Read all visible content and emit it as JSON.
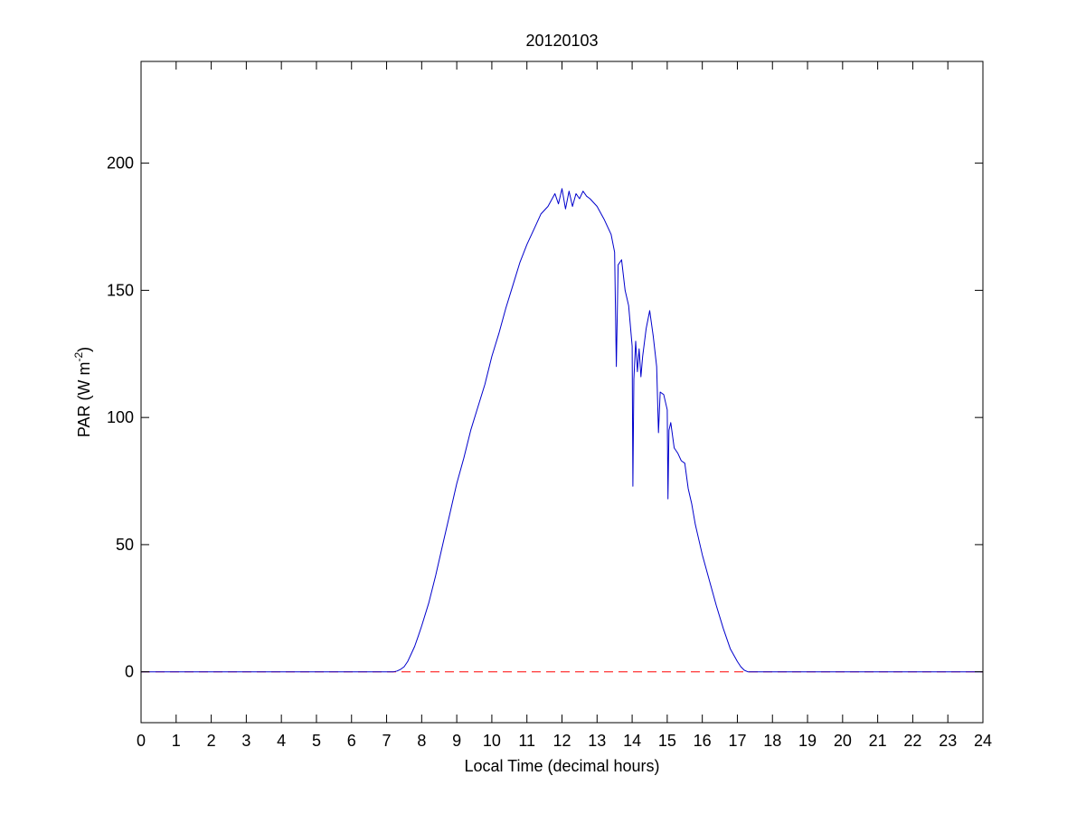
{
  "chart_data": {
    "type": "line",
    "title": "20120103",
    "xlabel": "Local Time (decimal hours)",
    "ylabel": {
      "main": "PAR (W m",
      "superscript": "-2",
      "closing": ")"
    },
    "xlim": [
      0,
      24
    ],
    "ylim": [
      -20,
      240
    ],
    "xticks": [
      0,
      1,
      2,
      3,
      4,
      5,
      6,
      7,
      8,
      9,
      10,
      11,
      12,
      13,
      14,
      15,
      16,
      17,
      18,
      19,
      20,
      21,
      22,
      23,
      24
    ],
    "yticks": [
      0,
      50,
      100,
      150,
      200
    ],
    "grid": false,
    "legend": null,
    "reference_line": {
      "y": 0,
      "style": "dashed",
      "color": "#ff0000"
    },
    "series": [
      {
        "color": "#0000cc",
        "points": [
          [
            0,
            0
          ],
          [
            7.2,
            0
          ],
          [
            7.3,
            0.3
          ],
          [
            7.4,
            1
          ],
          [
            7.5,
            2
          ],
          [
            7.6,
            4
          ],
          [
            7.7,
            7
          ],
          [
            7.8,
            10
          ],
          [
            7.9,
            14
          ],
          [
            8.0,
            18
          ],
          [
            8.2,
            27
          ],
          [
            8.4,
            38
          ],
          [
            8.6,
            50
          ],
          [
            8.8,
            62
          ],
          [
            9.0,
            74
          ],
          [
            9.2,
            84
          ],
          [
            9.4,
            95
          ],
          [
            9.6,
            104
          ],
          [
            9.8,
            113
          ],
          [
            10.0,
            124
          ],
          [
            10.2,
            133
          ],
          [
            10.4,
            143
          ],
          [
            10.6,
            152
          ],
          [
            10.8,
            161
          ],
          [
            11.0,
            168
          ],
          [
            11.2,
            174
          ],
          [
            11.4,
            180
          ],
          [
            11.6,
            183
          ],
          [
            11.8,
            188
          ],
          [
            11.9,
            184
          ],
          [
            12.0,
            190
          ],
          [
            12.1,
            182
          ],
          [
            12.2,
            189
          ],
          [
            12.3,
            183
          ],
          [
            12.4,
            188
          ],
          [
            12.5,
            186
          ],
          [
            12.6,
            189
          ],
          [
            12.7,
            187
          ],
          [
            12.8,
            186
          ],
          [
            13.0,
            183
          ],
          [
            13.2,
            178
          ],
          [
            13.4,
            172
          ],
          [
            13.5,
            165
          ],
          [
            13.55,
            120
          ],
          [
            13.6,
            160
          ],
          [
            13.7,
            162
          ],
          [
            13.8,
            150
          ],
          [
            13.9,
            144
          ],
          [
            14.0,
            128
          ],
          [
            14.02,
            73
          ],
          [
            14.05,
            115
          ],
          [
            14.1,
            130
          ],
          [
            14.15,
            118
          ],
          [
            14.2,
            127
          ],
          [
            14.25,
            116
          ],
          [
            14.3,
            124
          ],
          [
            14.4,
            135
          ],
          [
            14.5,
            142
          ],
          [
            14.6,
            132
          ],
          [
            14.7,
            120
          ],
          [
            14.75,
            94
          ],
          [
            14.8,
            110
          ],
          [
            14.9,
            109
          ],
          [
            15.0,
            103
          ],
          [
            15.02,
            68
          ],
          [
            15.05,
            95
          ],
          [
            15.1,
            98
          ],
          [
            15.2,
            88
          ],
          [
            15.3,
            86
          ],
          [
            15.4,
            83
          ],
          [
            15.5,
            82
          ],
          [
            15.6,
            72
          ],
          [
            15.7,
            66
          ],
          [
            15.8,
            58
          ],
          [
            15.9,
            52
          ],
          [
            16.0,
            46
          ],
          [
            16.2,
            36
          ],
          [
            16.4,
            26
          ],
          [
            16.6,
            17
          ],
          [
            16.8,
            9
          ],
          [
            17.0,
            4
          ],
          [
            17.1,
            2
          ],
          [
            17.2,
            0.6
          ],
          [
            17.3,
            0
          ],
          [
            24,
            0
          ]
        ]
      }
    ]
  }
}
